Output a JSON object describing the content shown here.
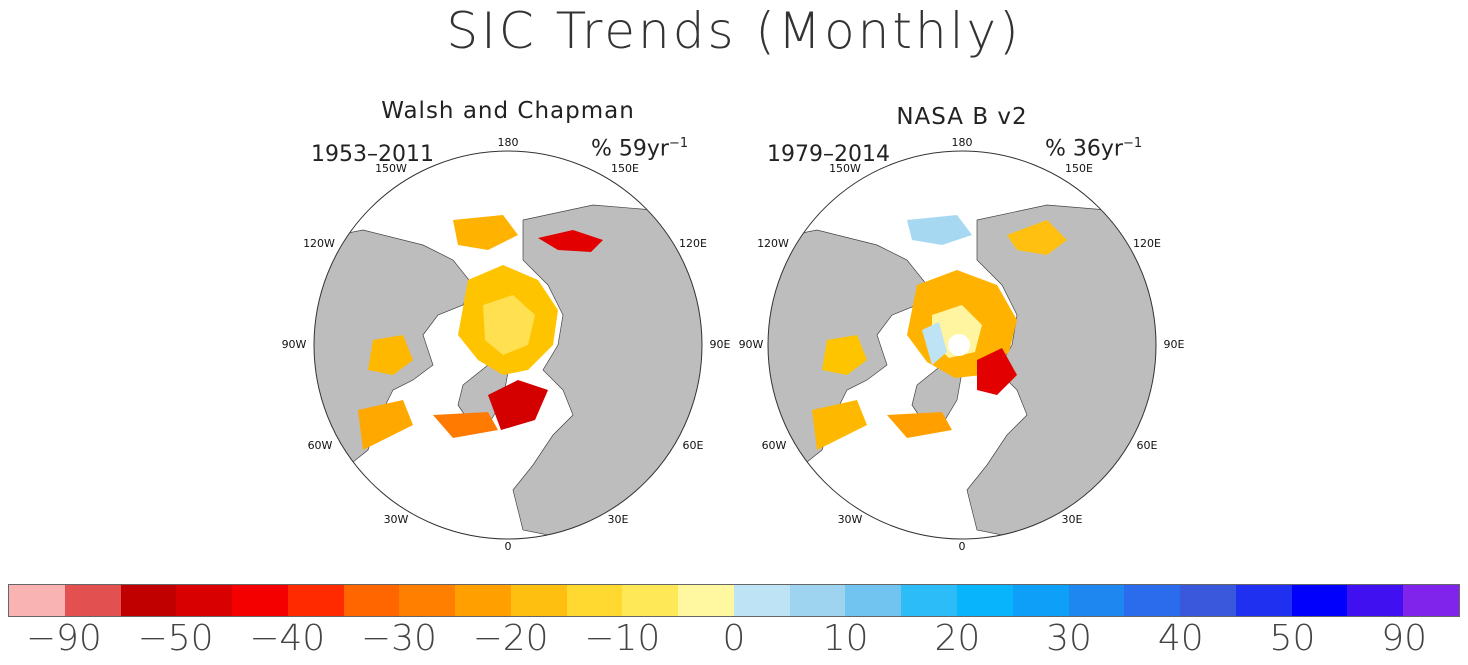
{
  "title": "SIC Trends (Monthly)",
  "panels": [
    {
      "title": "Walsh and Chapman",
      "years": "1953–2011",
      "unit_prefix": "% 59yr",
      "unit_exp": "−1",
      "lon_labels": {
        "top": "180",
        "tl": "150W",
        "tr": "150E",
        "l1": "120W",
        "r1": "120E",
        "l2": "90W",
        "r2": "90E",
        "l3": "60W",
        "r3": "60E",
        "bl": "30W",
        "br": "30E",
        "bottom": "0"
      }
    },
    {
      "title": "NASA B v2",
      "years": "1979–2014",
      "unit_prefix": "% 36yr",
      "unit_exp": "−1",
      "lon_labels": {
        "top": "180",
        "tl": "150W",
        "tr": "150E",
        "l1": "120W",
        "r1": "120E",
        "l2": "90W",
        "r2": "90E",
        "l3": "60W",
        "r3": "60E",
        "bl": "30W",
        "br": "30E",
        "bottom": "0"
      }
    }
  ],
  "colorbar": {
    "colors": [
      "#f9b3b3",
      "#e35050",
      "#c00000",
      "#d80000",
      "#f50000",
      "#ff2a00",
      "#ff6600",
      "#ff8000",
      "#ffa000",
      "#ffbf10",
      "#ffd830",
      "#ffe858",
      "#fff8a0",
      "#bde3f5",
      "#9ed4f0",
      "#72c4f0",
      "#2cbcf8",
      "#08b4fc",
      "#0ea0f8",
      "#1e88f0",
      "#2b6cec",
      "#3a58dc",
      "#2030f0",
      "#0000fc",
      "#4010f0",
      "#8024ec"
    ],
    "labels": [
      "−90",
      "−50",
      "−40",
      "−30",
      "−20",
      "−10",
      "0",
      "10",
      "20",
      "30",
      "40",
      "50",
      "90"
    ]
  },
  "colors": {
    "land": "#bdbdbd",
    "ocean": "#ffffff",
    "coast": "#444444"
  }
}
